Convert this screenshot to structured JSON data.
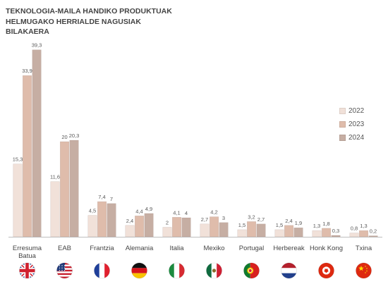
{
  "title": {
    "line1": "TEKNOLOGIA-MAILA HANDIKO PRODUKTUAK",
    "line2": "HELMUGAKO HERRIALDE NAGUSIAK",
    "line3": "BILAKAERA"
  },
  "colors": {
    "2022": "#f1e1d9",
    "2023": "#dfbcab",
    "2024": "#c6aea3",
    "axis": "#bfbfbf",
    "label": "#595959"
  },
  "chart_data": {
    "type": "bar",
    "categories": [
      "Erresuma Batua",
      "EAB",
      "Frantzia",
      "Alemania",
      "Italia",
      "Mexiko",
      "Portugal",
      "Herbereak",
      "Honk Kong",
      "Txina"
    ],
    "category_lines": [
      [
        "Erresuma",
        "Batua"
      ],
      [
        "EAB"
      ],
      [
        "Frantzia"
      ],
      [
        "Alemania"
      ],
      [
        "Italia"
      ],
      [
        "Mexiko"
      ],
      [
        "Portugal"
      ],
      [
        "Herbereak"
      ],
      [
        "Honk Kong"
      ],
      [
        "Txina"
      ]
    ],
    "series": [
      {
        "name": "2022",
        "values": [
          15.3,
          11.6,
          4.5,
          2.4,
          2,
          2.7,
          1.5,
          1.5,
          1.3,
          0.8
        ],
        "labels": [
          "15,3",
          "11,6",
          "4,5",
          "2,4",
          "2",
          "2,7",
          "1,5",
          "1,5",
          "1,3",
          "0,8"
        ]
      },
      {
        "name": "2023",
        "values": [
          33.9,
          20,
          7.4,
          4.4,
          4.1,
          4.2,
          3.2,
          2.4,
          1.8,
          1.3
        ],
        "labels": [
          "33,9",
          "20",
          "7,4",
          "4,4",
          "4,1",
          "4,2",
          "3,2",
          "2,4",
          "1,8",
          "1,3"
        ]
      },
      {
        "name": "2024",
        "values": [
          39.3,
          20.3,
          7,
          4.9,
          4,
          3,
          2.7,
          1.9,
          0.3,
          0.2
        ],
        "labels": [
          "39,3",
          "20,3",
          "7",
          "4,9",
          "4",
          "3",
          "2,7",
          "1,9",
          "0,3",
          "0,2"
        ]
      }
    ],
    "legend_position": "right",
    "grid": false,
    "ylim": [
      0,
      40
    ]
  },
  "flags": [
    "uk-flag-icon",
    "us-flag-icon",
    "france-flag-icon",
    "germany-flag-icon",
    "italy-flag-icon",
    "mexico-flag-icon",
    "portugal-flag-icon",
    "netherlands-flag-icon",
    "hongkong-flag-icon",
    "china-flag-icon"
  ]
}
